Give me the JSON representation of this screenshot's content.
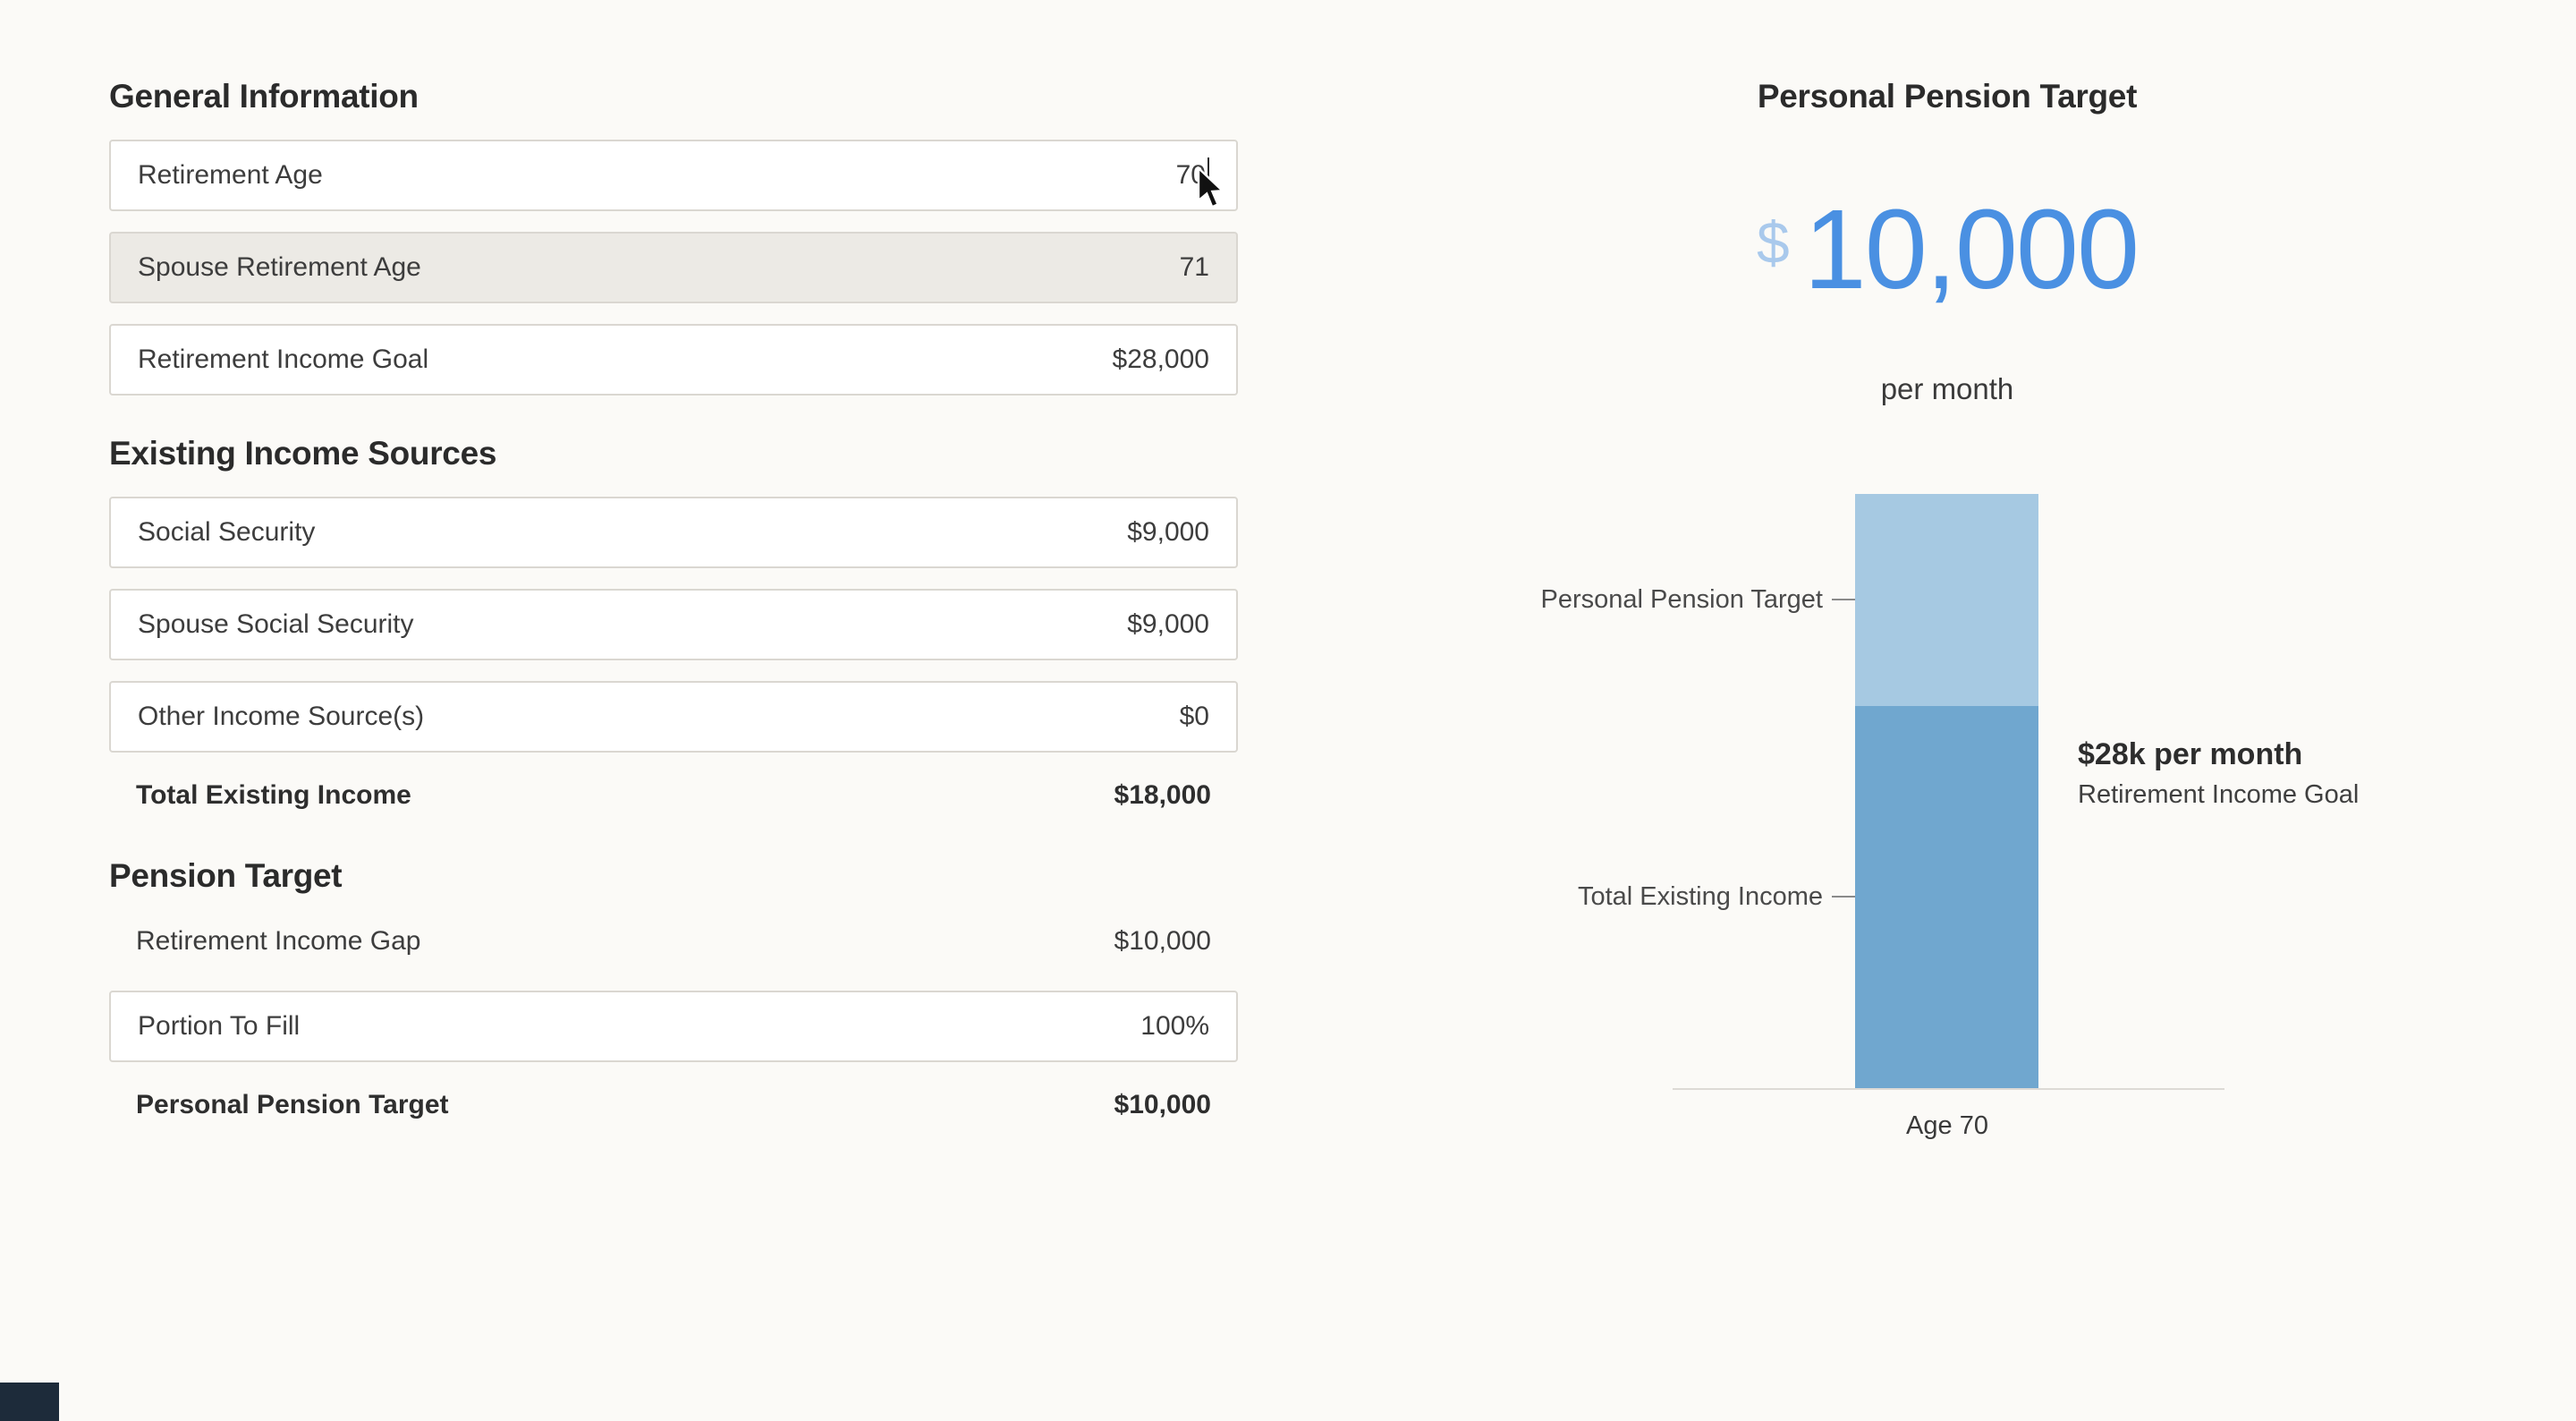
{
  "form": {
    "sections": [
      {
        "title": "General Information",
        "rows": [
          {
            "label": "Retirement Age",
            "value": "70",
            "state": "focused"
          },
          {
            "label": "Spouse Retirement Age",
            "value": "71",
            "state": "disabled"
          },
          {
            "label": "Retirement Income Goal",
            "value": "$28,000",
            "state": "normal"
          }
        ]
      },
      {
        "title": "Existing Income Sources",
        "rows": [
          {
            "label": "Social Security",
            "value": "$9,000",
            "state": "normal"
          },
          {
            "label": "Spouse Social Security",
            "value": "$9,000",
            "state": "normal"
          },
          {
            "label": "Other Income Source(s)",
            "value": "$0",
            "state": "normal"
          },
          {
            "label": "Total Existing Income",
            "value": "$18,000",
            "state": "readonly-total"
          }
        ]
      },
      {
        "title": "Pension Target",
        "rows": [
          {
            "label": "Retirement Income Gap",
            "value": "$10,000",
            "state": "readonly"
          },
          {
            "label": "Portion To Fill",
            "value": "100%",
            "state": "normal"
          },
          {
            "label": "Personal Pension Target",
            "value": "$10,000",
            "state": "readonly-total"
          }
        ]
      }
    ]
  },
  "summary": {
    "title": "Personal Pension Target",
    "currency_symbol": "$",
    "amount": "10,000",
    "per_label": "per month"
  },
  "chart_data": {
    "type": "bar",
    "stacked": true,
    "categories": [
      "Age 70"
    ],
    "series": [
      {
        "name": "Total Existing Income",
        "values": [
          18000
        ],
        "color": "#70a7cf"
      },
      {
        "name": "Personal Pension Target",
        "values": [
          10000
        ],
        "color": "#a6c9e2"
      }
    ],
    "ylim": [
      0,
      28000
    ],
    "grid": false,
    "legend": "none",
    "x_axis_label": "Age 70",
    "annotations": {
      "total_label": "$28k per month",
      "total_sublabel": "Retirement Income Goal",
      "segment_labels": [
        "Personal Pension Target",
        "Total Existing Income"
      ]
    }
  },
  "colors": {
    "accent_blue": "#4a90e2",
    "light_dollar_blue": "#a9c9ec",
    "bar_light": "#a6c9e2",
    "bar_dark": "#70a7cf",
    "background": "#fbfaf7"
  }
}
